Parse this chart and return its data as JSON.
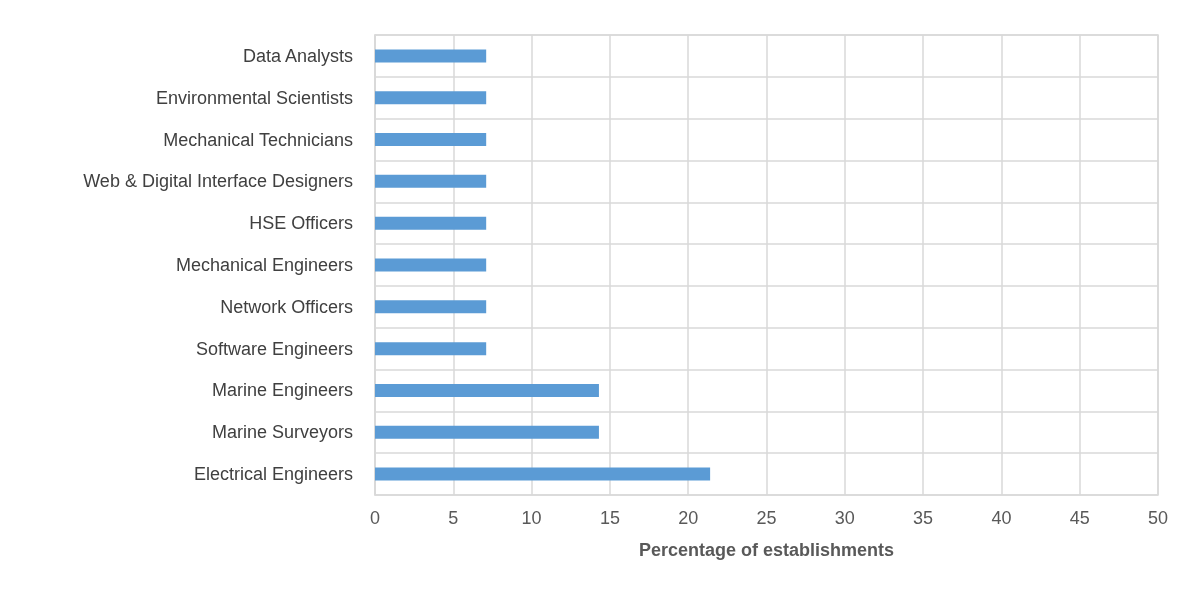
{
  "chart_data": {
    "type": "bar",
    "orientation": "horizontal",
    "xlabel": "Percentage of establishments",
    "categories": [
      "Data Analysts",
      "Environmental Scientists",
      "Mechanical Technicians",
      "Web & Digital Interface Designers",
      "HSE Officers",
      "Mechanical Engineers",
      "Network Officers",
      "Software Engineers",
      "Marine Engineers",
      "Marine Surveyors",
      "Electrical Engineers"
    ],
    "values": [
      7.1,
      7.1,
      7.1,
      7.1,
      7.1,
      7.1,
      7.1,
      7.1,
      14.3,
      14.3,
      21.4
    ],
    "color": "#5b9bd5",
    "xlim": [
      0,
      50
    ],
    "xticks": [
      0,
      5,
      10,
      15,
      20,
      25,
      30,
      35,
      40,
      45,
      50
    ],
    "grid": true
  }
}
